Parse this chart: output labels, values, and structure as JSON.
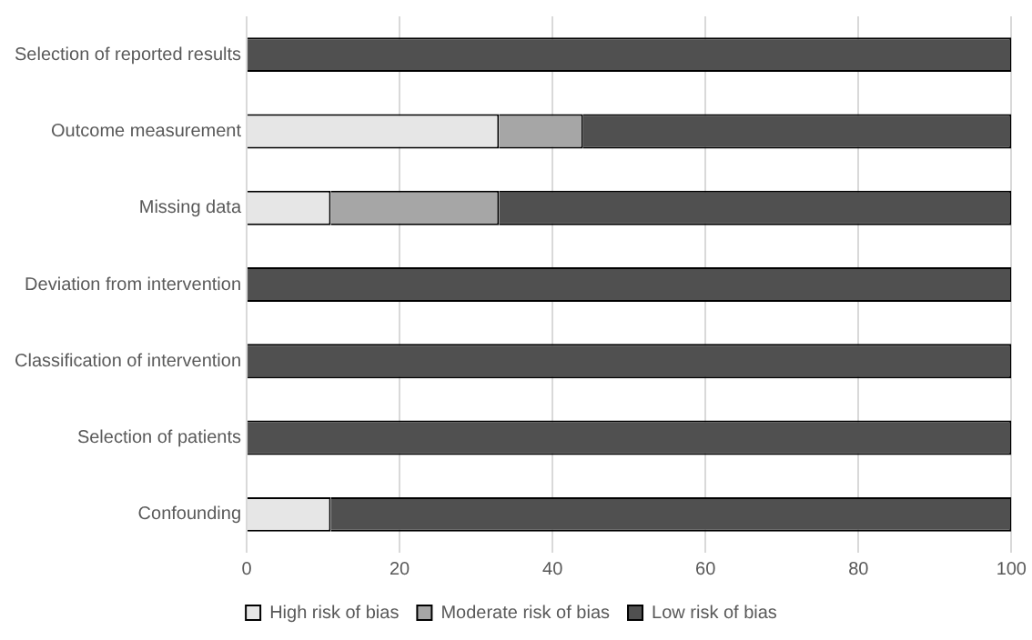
{
  "chart_data": {
    "type": "bar",
    "orientation": "horizontal",
    "stacked": true,
    "categories": [
      "Selection of reported results",
      "Outcome measurement",
      "Missing data",
      "Deviation from intervention",
      "Classification of intervention",
      "Selection of patients",
      "Confounding"
    ],
    "series": [
      {
        "name": "High risk of bias",
        "color": "#e6e6e6",
        "values": [
          0,
          33,
          11,
          0,
          0,
          0,
          11
        ]
      },
      {
        "name": "Moderate risk of bias",
        "color": "#a6a6a6",
        "values": [
          0,
          11,
          22,
          0,
          0,
          0,
          0
        ]
      },
      {
        "name": "Low risk of bias",
        "color": "#505050",
        "values": [
          100,
          56,
          67,
          100,
          100,
          100,
          89
        ]
      }
    ],
    "xlim": [
      0,
      100
    ],
    "xticks": [
      0,
      20,
      40,
      60,
      80,
      100
    ],
    "grid": "x",
    "legend": "bottom"
  }
}
